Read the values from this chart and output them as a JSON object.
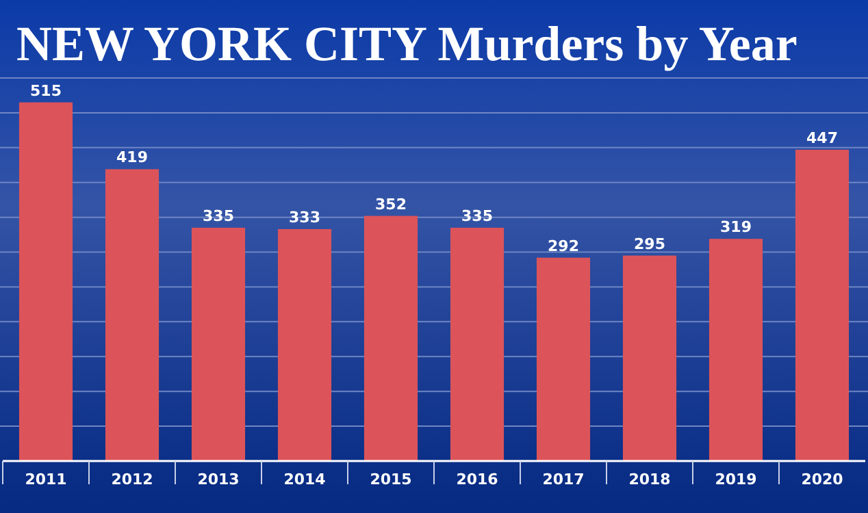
{
  "chart_data": {
    "type": "bar",
    "title": "NEW YORK CITY Murders by Year",
    "categories": [
      "2011",
      "2012",
      "2013",
      "2014",
      "2015",
      "2016",
      "2017",
      "2018",
      "2019",
      "2020"
    ],
    "values": [
      515,
      419,
      335,
      333,
      352,
      335,
      292,
      295,
      319,
      447
    ],
    "color": "#dc5459",
    "ylim": [
      0,
      550
    ],
    "yticks": [
      {
        "value": 50,
        "label": null
      },
      {
        "value": 100,
        "label": null
      },
      {
        "value": 150,
        "label": null
      },
      {
        "value": 200,
        "label": null
      },
      {
        "value": 250,
        "label": null
      },
      {
        "value": 300,
        "label": null
      },
      {
        "value": 350,
        "label": null
      },
      {
        "value": 400,
        "label": null
      },
      {
        "value": 450,
        "label": null
      },
      {
        "value": 500,
        "label": null
      },
      {
        "value": 550,
        "label": null
      }
    ],
    "grid": "y",
    "tick_labels": "x",
    "data_labels": true
  }
}
